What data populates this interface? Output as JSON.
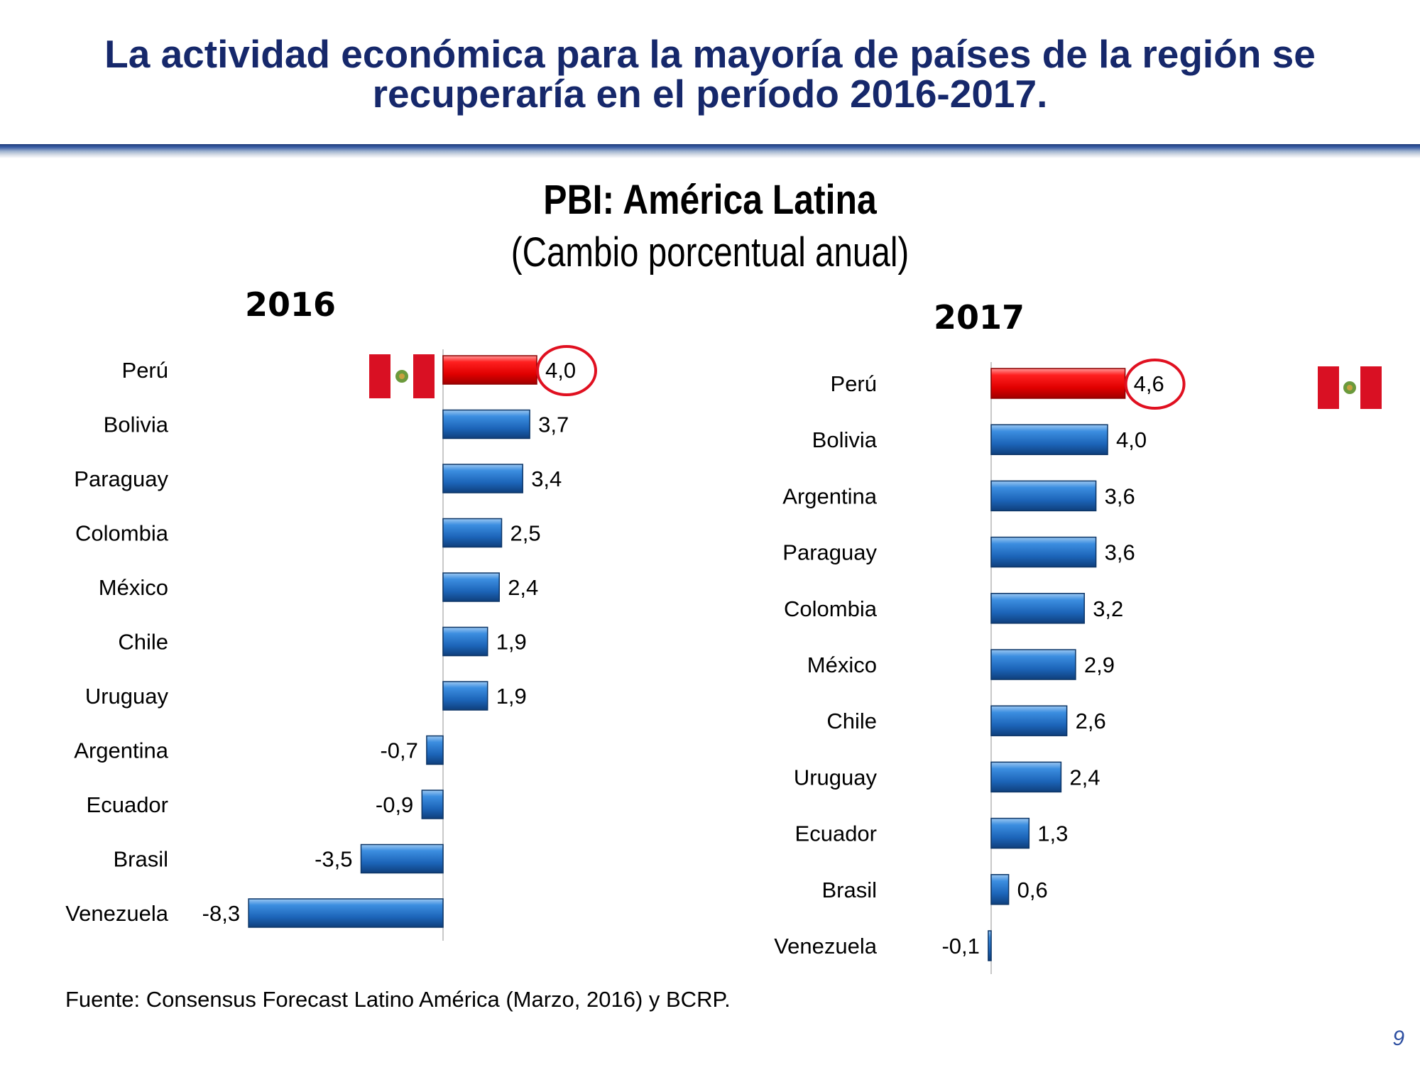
{
  "slide": {
    "title": "La actividad económica para la mayoría de países de la región se recuperaría en el período 2016-2017.",
    "source": "Fuente: Consensus Forecast Latino América  (Marzo, 2016) y BCRP.",
    "page_number": "9"
  },
  "colors": {
    "title": "#16286b",
    "bar_blue": "#1f6fc7",
    "bar_red": "#ff0000",
    "highlight_circle": "#e01020",
    "flag_red": "#d91023"
  },
  "chart_data": [
    {
      "type": "bar",
      "orientation": "horizontal",
      "title": "PBI: América Latina",
      "subtitle": "(Cambio porcentual anual)",
      "panel_label": "2016",
      "categories": [
        "Perú",
        "Bolivia",
        "Paraguay",
        "Colombia",
        "México",
        "Chile",
        "Uruguay",
        "Argentina",
        "Ecuador",
        "Brasil",
        "Venezuela"
      ],
      "values": [
        4.0,
        3.7,
        3.4,
        2.5,
        2.4,
        1.9,
        1.9,
        -0.7,
        -0.9,
        -3.5,
        -8.3
      ],
      "value_labels": [
        "4,0",
        "3,7",
        "3,4",
        "2,5",
        "2,4",
        "1,9",
        "1,9",
        "-0,7",
        "-0,9",
        "-3,5",
        "-8,3"
      ],
      "highlight": "Perú",
      "grid": false
    },
    {
      "type": "bar",
      "orientation": "horizontal",
      "panel_label": "2017",
      "categories": [
        "Perú",
        "Bolivia",
        "Argentina",
        "Paraguay",
        "Colombia",
        "México",
        "Chile",
        "Uruguay",
        "Ecuador",
        "Brasil",
        "Venezuela"
      ],
      "values": [
        4.6,
        4.0,
        3.6,
        3.6,
        3.2,
        2.9,
        2.6,
        2.4,
        1.3,
        0.6,
        -0.1
      ],
      "value_labels": [
        "4,6",
        "4,0",
        "3,6",
        "3,6",
        "3,2",
        "2,9",
        "2,6",
        "2,4",
        "1,3",
        "0,6",
        "-0,1"
      ],
      "highlight": "Perú",
      "grid": false
    }
  ]
}
